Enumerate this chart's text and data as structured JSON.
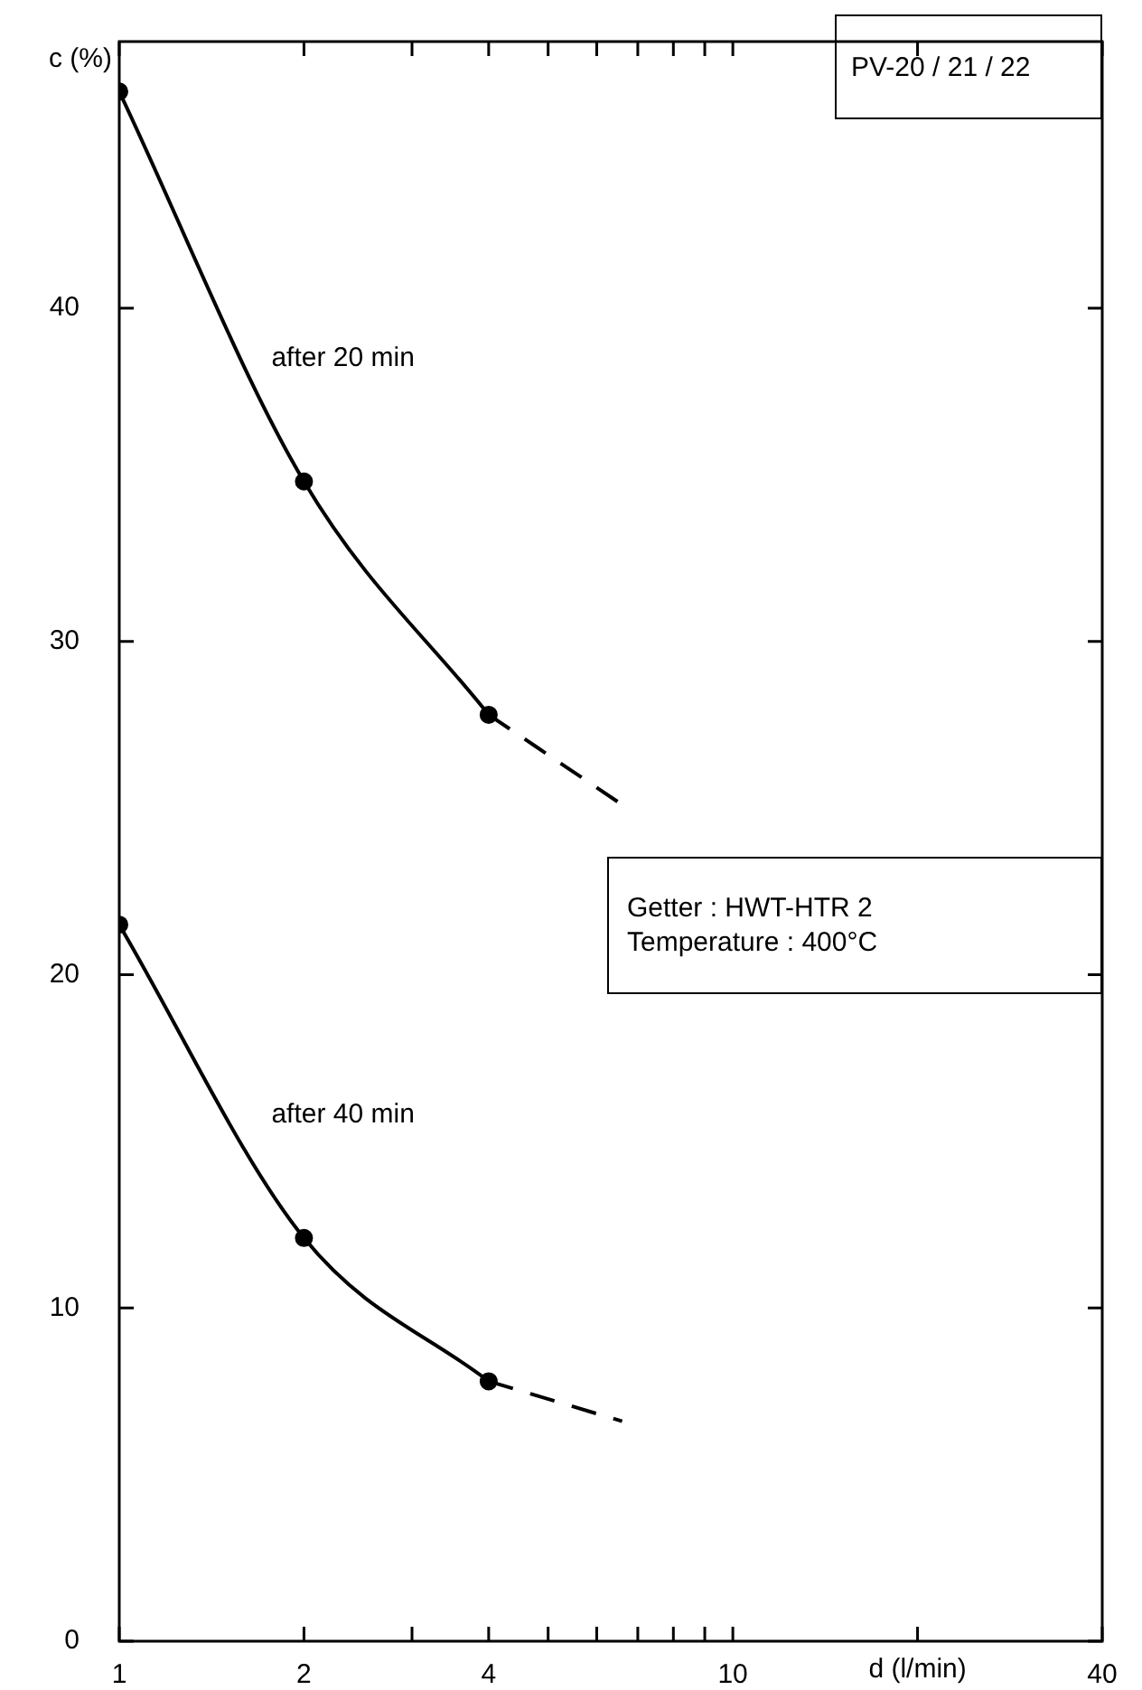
{
  "chart_data": {
    "type": "line",
    "xlabel": "d (l/min)",
    "ylabel": "c (%)",
    "log": "x",
    "xlim": [
      1,
      40
    ],
    "xticks": [
      1,
      2,
      {
        "value": 3,
        "label": null
      },
      4,
      {
        "value": 5,
        "label": null
      },
      {
        "value": 6,
        "label": null
      },
      {
        "value": 7,
        "label": null
      },
      {
        "value": 8,
        "label": null
      },
      {
        "value": 9,
        "label": null
      },
      10,
      {
        "value": 20,
        "label": null
      },
      40
    ],
    "ylim": [
      0,
      48
    ],
    "yticks": [
      0,
      10,
      20,
      30,
      40
    ],
    "grid": false,
    "legend": false,
    "series": [
      {
        "name": "after 20 min",
        "x": [
          1,
          2,
          4
        ],
        "values": [
          46.5,
          34.8,
          27.8
        ],
        "color": "#000000",
        "marker": "circle",
        "line_style": "solid"
      },
      {
        "x": [
          4,
          6.6
        ],
        "values": [
          27.8,
          25.1
        ],
        "color": "#000000",
        "marker": "none",
        "line_style": "dashed"
      },
      {
        "name": "after 40 min",
        "x": [
          1,
          2,
          4
        ],
        "values": [
          21.5,
          12.1,
          7.8
        ],
        "color": "#000000",
        "marker": "circle",
        "line_style": "solid"
      },
      {
        "x": [
          4,
          6.6
        ],
        "values": [
          7.8,
          6.6
        ],
        "color": "#000000",
        "marker": "none",
        "line_style": "dashed"
      }
    ],
    "annotations": [
      "PV-20 / 21 / 22",
      "Getter : HWT-HTR 2",
      "Temperature : 400°C"
    ]
  }
}
